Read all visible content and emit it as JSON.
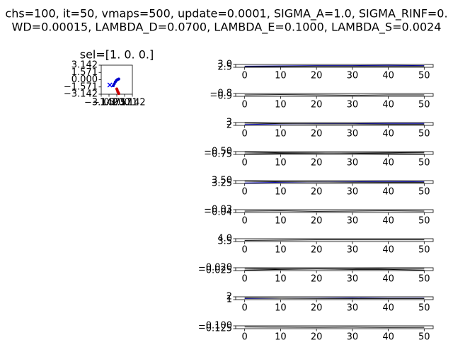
{
  "title": [
    "chs=100, it=50, vmaps=500, update=0.0001, SIGMA_A=1.0, SIGMA_RINF=0.",
    "WD=0.00015, LAMBDA_D=0.0700, LAMBDA_E=0.1000, LAMBDA_S=0.0024"
  ],
  "chart_data": [
    {
      "type": "scatter",
      "title": "sel=[1. 0. 0.]",
      "xlim": [
        -3.142,
        3.142
      ],
      "ylim": [
        -3.142,
        3.142
      ],
      "xticks": [
        {
          "value": -3.142,
          "label": "−3.142"
        },
        {
          "value": -1.571,
          "label": "−1.571"
        },
        {
          "value": 0,
          "label": "0.000"
        },
        1.571,
        3.142
      ],
      "yticks": [
        {
          "value": -3.142,
          "label": "−3.142"
        },
        {
          "value": -1.571,
          "label": "−1.571"
        },
        {
          "value": 0,
          "label": "0.000"
        },
        1.571,
        3.142
      ],
      "series": [
        {
          "color": "#0000cc",
          "marker": "o",
          "x": [
            -0.7,
            -0.5,
            -0.3,
            -0.1,
            0.1,
            0.3,
            0.4
          ],
          "y": [
            -1.3,
            -0.9,
            -0.5,
            -0.2,
            0.0,
            0.1,
            0.15
          ]
        },
        {
          "color": "#cc0000",
          "marker": "o",
          "x": [
            0.0,
            0.1,
            0.2,
            0.3,
            0.4
          ],
          "y": [
            -2.0,
            -2.3,
            -2.6,
            -2.8,
            -3.0
          ]
        },
        {
          "color": "#0000ff",
          "marker": "x",
          "x": [
            -1.4
          ],
          "y": [
            -1.15
          ]
        }
      ]
    },
    {
      "type": "line",
      "x": [
        0,
        10,
        20,
        30,
        40,
        50
      ],
      "xlim": [
        -2.5,
        52.5
      ],
      "xticks": [
        0,
        10,
        20,
        30,
        40,
        50
      ],
      "ylim": [
        2.5,
        3.0
      ],
      "yticks": [
        2.5,
        {
          "value": 3.0,
          "label": "3.0"
        }
      ],
      "series": [
        {
          "color": "#0000aa",
          "values": [
            2.7,
            2.75,
            2.8,
            2.8,
            2.85,
            2.8
          ]
        },
        {
          "color": "#000000",
          "values": [
            2.6,
            2.65,
            2.7,
            2.7,
            2.7,
            2.7
          ]
        }
      ]
    },
    {
      "type": "line",
      "x": [
        0,
        10,
        20,
        30,
        40,
        50
      ],
      "xlim": [
        -2.5,
        52.5
      ],
      "xticks": [
        0,
        10,
        20,
        30,
        40,
        50
      ],
      "ylim": [
        -0.9,
        -0.8
      ],
      "yticks": [
        {
          "value": -0.9,
          "label": "−0.9"
        },
        {
          "value": -0.8,
          "label": "−0.8"
        }
      ],
      "series": [
        {
          "color": "#000000",
          "values": [
            -0.85,
            -0.84,
            -0.85,
            -0.86,
            -0.85,
            -0.85
          ]
        }
      ]
    },
    {
      "type": "line",
      "x": [
        0,
        10,
        20,
        30,
        40,
        50
      ],
      "xlim": [
        -2.5,
        52.5
      ],
      "xticks": [
        0,
        10,
        20,
        30,
        40,
        50
      ],
      "ylim": [
        2,
        3
      ],
      "yticks": [
        2,
        3
      ],
      "series": [
        {
          "color": "#0000aa",
          "values": [
            2.3,
            2.5,
            2.6,
            2.6,
            2.7,
            2.7
          ]
        },
        {
          "color": "#000000",
          "values": [
            2.8,
            2.6,
            2.5,
            2.5,
            2.4,
            2.4
          ]
        }
      ]
    },
    {
      "type": "line",
      "x": [
        0,
        10,
        20,
        30,
        40,
        50
      ],
      "xlim": [
        -2.5,
        52.5
      ],
      "xticks": [
        0,
        10,
        20,
        30,
        40,
        50
      ],
      "ylim": [
        -0.75,
        -0.5
      ],
      "yticks": [
        {
          "value": -0.75,
          "label": "−0.75"
        },
        {
          "value": -0.5,
          "label": "−0.50"
        }
      ],
      "series": [
        {
          "color": "#000000",
          "values": [
            -0.55,
            -0.6,
            -0.62,
            -0.65,
            -0.68,
            -0.7
          ]
        },
        {
          "color": "#000000",
          "values": [
            -0.7,
            -0.66,
            -0.64,
            -0.62,
            -0.6,
            -0.58
          ]
        }
      ]
    },
    {
      "type": "line",
      "x": [
        0,
        10,
        20,
        30,
        40,
        50
      ],
      "xlim": [
        -2.5,
        52.5
      ],
      "xticks": [
        0,
        10,
        20,
        30,
        40,
        50
      ],
      "ylim": [
        3.25,
        3.5
      ],
      "yticks": [
        3.25,
        {
          "value": 3.5,
          "label": "3.50"
        }
      ],
      "series": [
        {
          "color": "#0000aa",
          "values": [
            3.3,
            3.35,
            3.38,
            3.4,
            3.42,
            3.4
          ]
        },
        {
          "color": "#000000",
          "values": [
            3.45,
            3.4,
            3.38,
            3.36,
            3.35,
            3.35
          ]
        }
      ]
    },
    {
      "type": "line",
      "x": [
        0,
        10,
        20,
        30,
        40,
        50
      ],
      "xlim": [
        -2.5,
        52.5
      ],
      "xticks": [
        0,
        10,
        20,
        30,
        40,
        50
      ],
      "ylim": [
        -0.04,
        -0.03
      ],
      "yticks": [
        {
          "value": -0.04,
          "label": "−0.04"
        },
        {
          "value": -0.03,
          "label": "−0.03"
        }
      ],
      "series": [
        {
          "color": "#000000",
          "values": [
            -0.035,
            -0.034,
            -0.036,
            -0.035,
            -0.034,
            -0.035
          ]
        }
      ]
    },
    {
      "type": "line",
      "x": [
        0,
        10,
        20,
        30,
        40,
        50
      ],
      "xlim": [
        -2.5,
        52.5
      ],
      "xticks": [
        0,
        10,
        20,
        30,
        40,
        50
      ],
      "ylim": [
        3.5,
        4.0
      ],
      "yticks": [
        3.5,
        {
          "value": 4.0,
          "label": "4.0"
        }
      ],
      "series": [
        {
          "color": "#000000",
          "values": [
            3.7,
            3.75,
            3.8,
            3.8,
            3.8,
            3.8
          ]
        }
      ]
    },
    {
      "type": "line",
      "x": [
        0,
        10,
        20,
        30,
        40,
        50
      ],
      "xlim": [
        -2.5,
        52.5
      ],
      "xticks": [
        0,
        10,
        20,
        30,
        40,
        50
      ],
      "ylim": [
        -0.025,
        -0.02
      ],
      "yticks": [
        {
          "value": -0.025,
          "label": "−0.025"
        },
        {
          "value": -0.02,
          "label": "−0.020"
        }
      ],
      "series": [
        {
          "color": "#000000",
          "values": [
            -0.024,
            -0.023,
            -0.022,
            -0.022,
            -0.021,
            -0.021
          ]
        },
        {
          "color": "#000000",
          "values": [
            -0.021,
            -0.022,
            -0.022,
            -0.023,
            -0.023,
            -0.024
          ]
        }
      ]
    },
    {
      "type": "line",
      "x": [
        0,
        10,
        20,
        30,
        40,
        50
      ],
      "xlim": [
        -2.5,
        52.5
      ],
      "xticks": [
        0,
        10,
        20,
        30,
        40,
        50
      ],
      "ylim": [
        1,
        2
      ],
      "yticks": [
        1,
        2
      ],
      "series": [
        {
          "color": "#0000aa",
          "values": [
            1.4,
            1.5,
            1.5,
            1.6,
            1.5,
            1.5
          ]
        },
        {
          "color": "#000000",
          "values": [
            1.6,
            1.5,
            1.45,
            1.4,
            1.4,
            1.4
          ]
        }
      ]
    },
    {
      "type": "line",
      "x": [
        0,
        10,
        20,
        30,
        40,
        50
      ],
      "xlim": [
        -2.5,
        52.5
      ],
      "xticks": [
        0,
        10,
        20,
        30,
        40,
        50
      ],
      "ylim": [
        -0.125,
        -0.1
      ],
      "yticks": [
        {
          "value": -0.125,
          "label": "−0.125"
        },
        {
          "value": -0.1,
          "label": "−0.100"
        }
      ],
      "series": [
        {
          "color": "#000000",
          "values": [
            -0.11,
            -0.112,
            -0.113,
            -0.112,
            -0.114,
            -0.113
          ]
        }
      ]
    }
  ]
}
